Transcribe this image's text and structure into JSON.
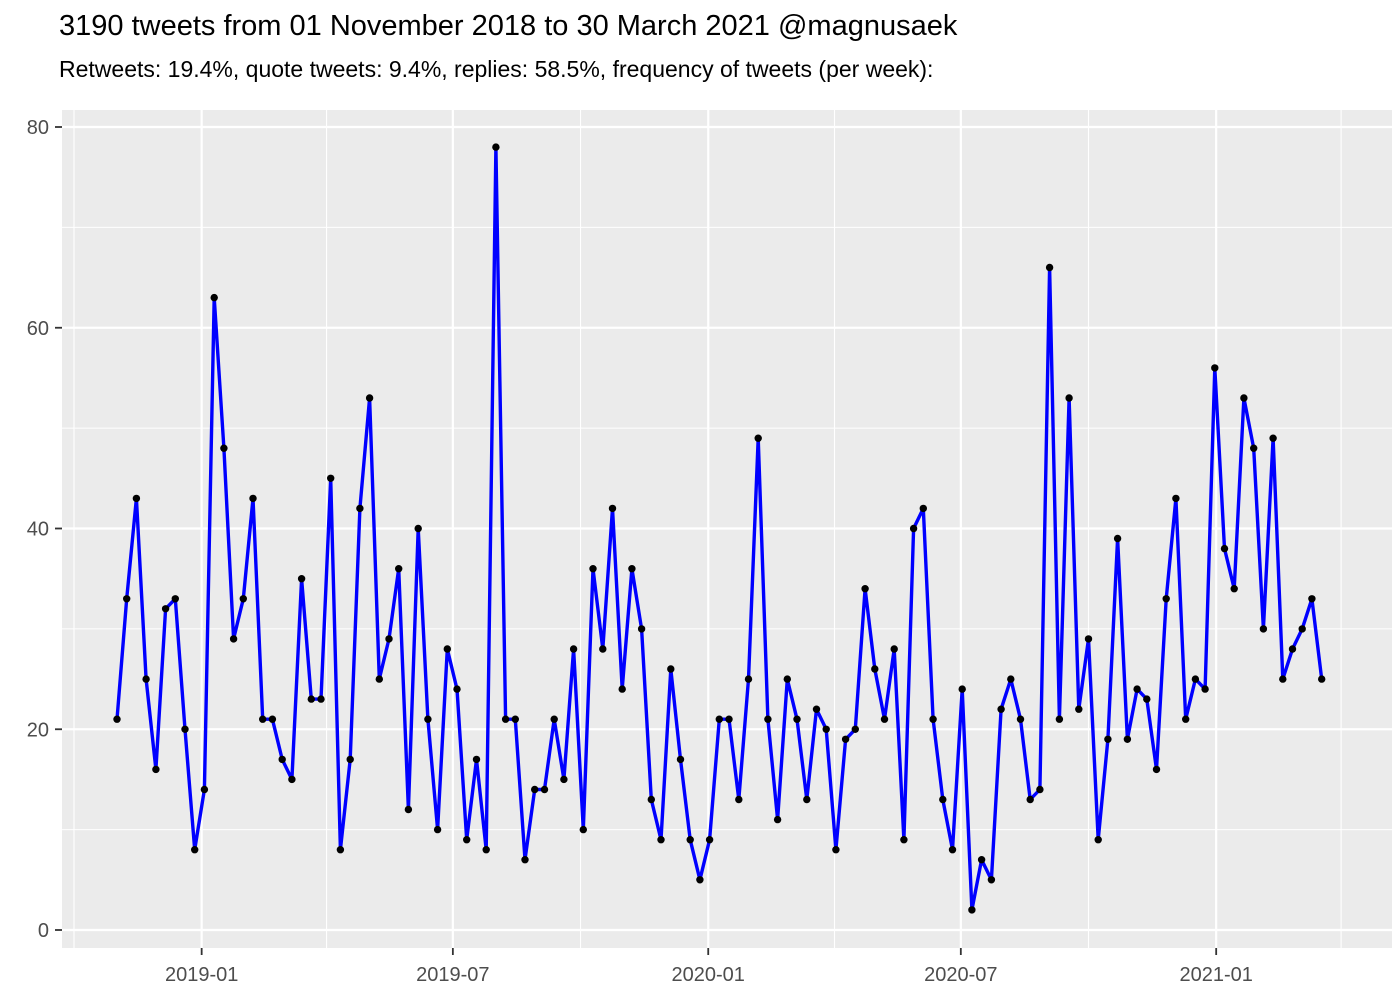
{
  "header": {
    "title": "3190 tweets from 01 November 2018 to 30 March 2021 @magnusaek",
    "subtitle": "Retweets: 19.4%, quote tweets: 9.4%, replies: 58.5%, frequency of tweets (per week):"
  },
  "chart_data": {
    "type": "line",
    "title": "3190 tweets from 01 November 2018 to 30 March 2021 @magnusaek",
    "subtitle": "Retweets: 19.4%, quote tweets: 9.4%, replies: 58.5%, frequency of tweets (per week):",
    "xlabel": "",
    "ylabel": "",
    "x_start_date": "2018-11-01",
    "x_interval_days": 7,
    "values": [
      21,
      33,
      43,
      25,
      16,
      32,
      33,
      20,
      8,
      14,
      63,
      48,
      29,
      33,
      43,
      21,
      21,
      17,
      15,
      35,
      23,
      23,
      45,
      8,
      17,
      42,
      53,
      25,
      29,
      36,
      12,
      40,
      21,
      10,
      28,
      24,
      9,
      17,
      8,
      78,
      21,
      21,
      7,
      14,
      14,
      21,
      15,
      28,
      10,
      36,
      28,
      42,
      24,
      36,
      30,
      13,
      9,
      26,
      17,
      9,
      5,
      9,
      21,
      21,
      13,
      25,
      49,
      21,
      11,
      25,
      21,
      13,
      22,
      20,
      8,
      19,
      20,
      34,
      26,
      21,
      28,
      9,
      40,
      42,
      21,
      13,
      8,
      24,
      2,
      7,
      5,
      22,
      25,
      21,
      13,
      14,
      66,
      21,
      53,
      22,
      29,
      9,
      19,
      39,
      19,
      24,
      23,
      16,
      33,
      43,
      21,
      25,
      24,
      56,
      38,
      34,
      53,
      48,
      30,
      49,
      25,
      28,
      30,
      33,
      25
    ],
    "x_ticks": [
      {
        "label": "2019-01",
        "date": "2019-01-01"
      },
      {
        "label": "2019-07",
        "date": "2019-07-01"
      },
      {
        "label": "2020-01",
        "date": "2020-01-01"
      },
      {
        "label": "2020-07",
        "date": "2020-07-01"
      },
      {
        "label": "2021-01",
        "date": "2021-01-01"
      }
    ],
    "x_minor_gridlines": [
      "2018-10-01",
      "2019-04-01",
      "2019-10-01",
      "2020-04-01",
      "2020-10-01",
      "2021-04-01"
    ],
    "y_ticks": [
      0,
      20,
      40,
      60,
      80
    ],
    "y_minor_gridlines": [
      10,
      30,
      50,
      70
    ],
    "ylim": [
      0,
      80
    ],
    "grid": true,
    "legend_position": "none",
    "colors": {
      "line": "#0000FF",
      "point": "#000000",
      "panel_background": "#EBEBEB",
      "gridline": "#FFFFFF",
      "tick_text": "#4D4D4D",
      "tick_mark": "#333333",
      "title_text": "#000000"
    }
  }
}
